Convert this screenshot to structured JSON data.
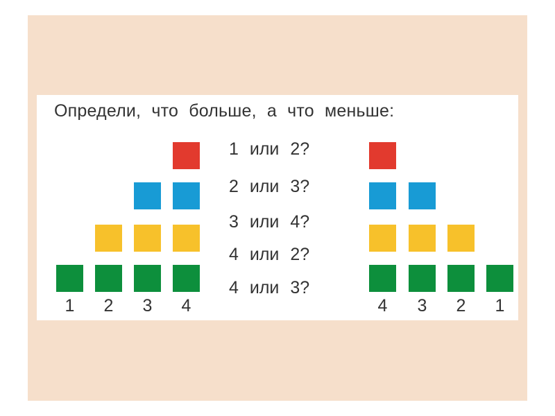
{
  "title": "Определи, что больше, а что меньше:",
  "colors": {
    "background": "#f6dfcb",
    "card": "#ffffff",
    "red": "#e23a2e",
    "blue": "#189bd5",
    "yellow": "#f7c12b",
    "green": "#0d8f3c",
    "text": "#333333"
  },
  "left_columns": [
    {
      "label": "1",
      "squares": [
        "green"
      ]
    },
    {
      "label": "2",
      "squares": [
        "green",
        "yellow"
      ]
    },
    {
      "label": "3",
      "squares": [
        "green",
        "yellow",
        "blue"
      ]
    },
    {
      "label": "4",
      "squares": [
        "green",
        "yellow",
        "blue",
        "red"
      ]
    }
  ],
  "right_columns": [
    {
      "label": "4",
      "squares": [
        "green",
        "yellow",
        "blue",
        "red"
      ]
    },
    {
      "label": "3",
      "squares": [
        "green",
        "yellow",
        "blue"
      ]
    },
    {
      "label": "2",
      "squares": [
        "green",
        "yellow"
      ]
    },
    {
      "label": "1",
      "squares": [
        "green"
      ]
    }
  ],
  "questions": [
    "1 или 2?",
    "2 или 3?",
    "3 или 4?",
    "4 или 2?",
    "4 или 3?"
  ]
}
